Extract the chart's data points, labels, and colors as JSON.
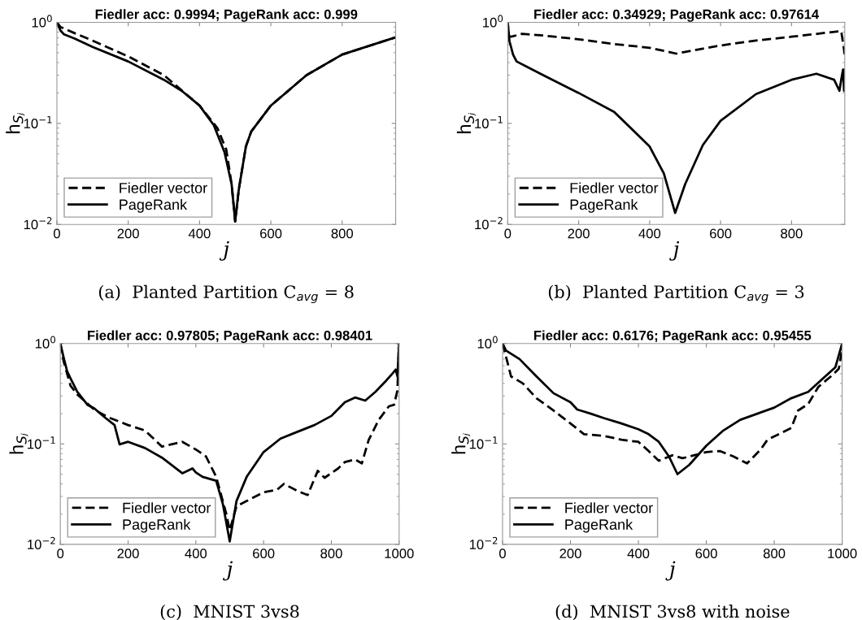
{
  "chart_data": [
    {
      "type": "line",
      "title": "Fiedler acc: 0.9994; PageRank acc: 0.999",
      "xlabel": "j",
      "ylabel": "h$_{Sⱼ}$",
      "annotations": [
        "(a)  Planted Partition C$_{avg}$ = 8"
      ],
      "log": "y",
      "legend": "lower left",
      "xlim": [
        0,
        950
      ],
      "xticks": [
        0,
        200,
        400,
        600,
        800
      ],
      "ylim": [
        0.01,
        1
      ],
      "yticks": [
        {
          "value": 0.01,
          "label": "10$^{−2}$"
        },
        {
          "value": 0.1,
          "label": "10$^{−1}$"
        },
        {
          "value": 1,
          "label": "10$^{0}$"
        }
      ],
      "series": [
        {
          "name": "Fiedler vector",
          "color": "#000000",
          "line_style": "dashed",
          "x": [
            0,
            10,
            50,
            100,
            200,
            300,
            400,
            450,
            475,
            490,
            500,
            510,
            530,
            545,
            600,
            700,
            800,
            950
          ],
          "values": [
            1.0,
            0.9,
            0.78,
            0.66,
            0.46,
            0.3,
            0.15,
            0.09,
            0.055,
            0.025,
            0.0107,
            0.022,
            0.059,
            0.083,
            0.15,
            0.3,
            0.48,
            0.71
          ]
        },
        {
          "name": "PageRank",
          "color": "#000000",
          "line_style": "solid",
          "x": [
            0,
            10,
            20,
            50,
            100,
            200,
            300,
            350,
            400,
            440,
            470,
            490,
            500,
            510,
            530,
            545,
            600,
            700,
            800,
            950
          ],
          "values": [
            1.0,
            0.83,
            0.76,
            0.69,
            0.57,
            0.41,
            0.27,
            0.21,
            0.15,
            0.096,
            0.052,
            0.025,
            0.0107,
            0.022,
            0.059,
            0.083,
            0.15,
            0.3,
            0.48,
            0.71
          ]
        }
      ]
    },
    {
      "type": "line",
      "title": "Fiedler acc: 0.34929; PageRank acc: 0.97614",
      "xlabel": "j",
      "ylabel": "h$_{Sⱼ}$",
      "annotations": [
        "(b)  Planted Partition C$_{avg}$ = 3"
      ],
      "log": "y",
      "legend": "lower left",
      "xlim": [
        0,
        950
      ],
      "xticks": [
        0,
        200,
        400,
        600,
        800
      ],
      "ylim": [
        0.01,
        1
      ],
      "yticks": [
        {
          "value": 0.01,
          "label": "10$^{−2}$"
        },
        {
          "value": 0.1,
          "label": "10$^{−1}$"
        },
        {
          "value": 1,
          "label": "10$^{0}$"
        }
      ],
      "series": [
        {
          "name": "Fiedler vector",
          "color": "#000000",
          "line_style": "dashed",
          "x": [
            0,
            10,
            40,
            100,
            200,
            300,
            400,
            475,
            600,
            700,
            800,
            940,
            950
          ],
          "values": [
            0.74,
            0.72,
            0.77,
            0.74,
            0.68,
            0.61,
            0.56,
            0.49,
            0.59,
            0.66,
            0.72,
            0.82,
            0.48
          ]
        },
        {
          "name": "PageRank",
          "color": "#000000",
          "line_style": "solid",
          "x": [
            0,
            5,
            15,
            25,
            50,
            100,
            200,
            300,
            400,
            440,
            472,
            500,
            550,
            600,
            700,
            800,
            870,
            920,
            935,
            940,
            945,
            948,
            950
          ],
          "values": [
            1.0,
            0.65,
            0.48,
            0.41,
            0.37,
            0.3,
            0.2,
            0.13,
            0.059,
            0.032,
            0.013,
            0.025,
            0.061,
            0.106,
            0.195,
            0.27,
            0.31,
            0.27,
            0.21,
            0.27,
            0.34,
            0.21,
            0.34
          ]
        }
      ]
    },
    {
      "type": "line",
      "title": "Fiedler acc: 0.97805; PageRank acc: 0.98401",
      "xlabel": "j",
      "ylabel": "h$_{Sⱼ}$",
      "annotations": [
        "(c)  MNIST 3vs8"
      ],
      "log": "y",
      "legend": "lower left",
      "xlim": [
        0,
        1000
      ],
      "xticks": [
        0,
        200,
        400,
        600,
        800,
        1000
      ],
      "ylim": [
        0.01,
        1
      ],
      "yticks": [
        {
          "value": 0.01,
          "label": "10$^{−2}$"
        },
        {
          "value": 0.1,
          "label": "10$^{−1}$"
        },
        {
          "value": 1,
          "label": "10$^{0}$"
        }
      ],
      "series": [
        {
          "name": "Fiedler vector",
          "color": "#000000",
          "line_style": "dashed",
          "x": [
            0,
            10,
            30,
            50,
            100,
            140,
            200,
            250,
            300,
            360,
            400,
            430,
            460,
            490,
            500,
            520,
            550,
            600,
            640,
            660,
            700,
            730,
            760,
            780,
            820,
            840,
            870,
            890,
            910,
            940,
            970,
            985,
            995,
            1000
          ],
          "values": [
            1.0,
            0.66,
            0.38,
            0.31,
            0.22,
            0.185,
            0.154,
            0.136,
            0.094,
            0.105,
            0.088,
            0.075,
            0.047,
            0.02,
            0.0138,
            0.024,
            0.027,
            0.033,
            0.035,
            0.04,
            0.034,
            0.031,
            0.054,
            0.046,
            0.057,
            0.066,
            0.07,
            0.064,
            0.109,
            0.174,
            0.237,
            0.245,
            0.34,
            1.0
          ]
        },
        {
          "name": "PageRank",
          "color": "#000000",
          "line_style": "solid",
          "x": [
            0,
            10,
            20,
            30,
            50,
            80,
            100,
            130,
            160,
            175,
            200,
            250,
            300,
            360,
            390,
            400,
            420,
            460,
            480,
            500,
            520,
            550,
            600,
            650,
            700,
            750,
            800,
            840,
            870,
            900,
            930,
            960,
            980,
            990,
            995,
            1000
          ],
          "values": [
            1.0,
            0.72,
            0.53,
            0.45,
            0.33,
            0.245,
            0.226,
            0.185,
            0.154,
            0.099,
            0.105,
            0.091,
            0.073,
            0.051,
            0.057,
            0.052,
            0.047,
            0.043,
            0.025,
            0.0107,
            0.027,
            0.047,
            0.083,
            0.113,
            0.132,
            0.154,
            0.19,
            0.26,
            0.29,
            0.27,
            0.33,
            0.42,
            0.5,
            0.55,
            0.47,
            1.0
          ]
        }
      ]
    },
    {
      "type": "line",
      "title": "Fiedler acc: 0.6176; PageRank acc: 0.95455",
      "xlabel": "j",
      "ylabel": "h$_{Sⱼ}$",
      "annotations": [
        "(d)  MNIST 3vs8 with noise"
      ],
      "log": "y",
      "legend": "lower left",
      "xlim": [
        0,
        1000
      ],
      "xticks": [
        0,
        200,
        400,
        600,
        800,
        1000
      ],
      "ylim": [
        0.01,
        1
      ],
      "yticks": [
        {
          "value": 0.01,
          "label": "10$^{−2}$"
        },
        {
          "value": 0.1,
          "label": "10$^{−1}$"
        },
        {
          "value": 1,
          "label": "10$^{0}$"
        }
      ],
      "series": [
        {
          "name": "Fiedler vector",
          "color": "#000000",
          "line_style": "dashed",
          "x": [
            0,
            15,
            25,
            60,
            100,
            150,
            200,
            240,
            300,
            350,
            400,
            430,
            460,
            500,
            530,
            600,
            640,
            680,
            720,
            760,
            780,
            850,
            870,
            900,
            930,
            970,
            990,
            1000
          ],
          "values": [
            1.0,
            0.64,
            0.47,
            0.4,
            0.285,
            0.215,
            0.16,
            0.125,
            0.12,
            0.11,
            0.105,
            0.085,
            0.068,
            0.077,
            0.072,
            0.083,
            0.085,
            0.075,
            0.064,
            0.088,
            0.11,
            0.144,
            0.215,
            0.25,
            0.37,
            0.48,
            0.56,
            0.87
          ]
        },
        {
          "name": "PageRank",
          "color": "#000000",
          "line_style": "solid",
          "x": [
            0,
            10,
            50,
            100,
            150,
            200,
            220,
            260,
            300,
            350,
            400,
            430,
            460,
            490,
            515,
            550,
            600,
            650,
            700,
            750,
            800,
            850,
            900,
            950,
            980,
            1000
          ],
          "values": [
            1.0,
            0.85,
            0.7,
            0.47,
            0.32,
            0.26,
            0.22,
            0.2,
            0.18,
            0.16,
            0.14,
            0.125,
            0.105,
            0.075,
            0.05,
            0.062,
            0.096,
            0.136,
            0.174,
            0.2,
            0.23,
            0.285,
            0.33,
            0.47,
            0.58,
            1.0
          ]
        }
      ]
    }
  ]
}
